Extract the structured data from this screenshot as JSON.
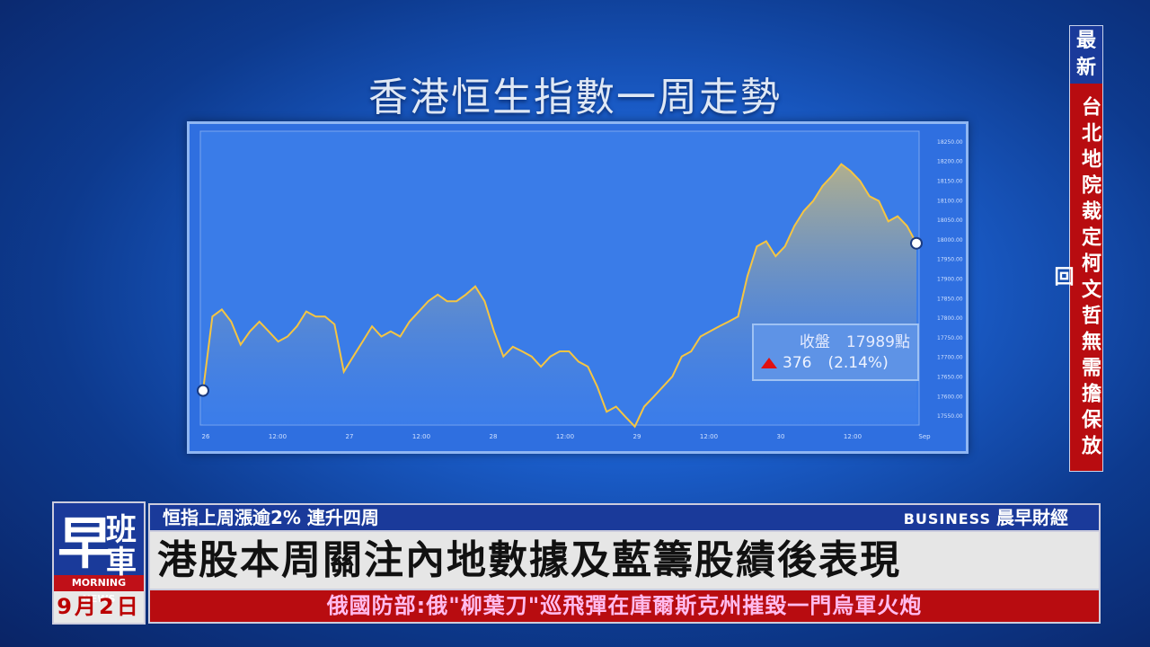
{
  "title": "香港恒生指數一周走勢",
  "side": {
    "tag": "最新",
    "headline": "台北地院裁定柯文哲無需擔保放回"
  },
  "logo": {
    "mark": "早",
    "line1": "班",
    "line2": "車",
    "english": "MORNING NEWS",
    "date": "9月2日"
  },
  "ticker": {
    "subtitle": "恒指上周漲逾2% 連升四周",
    "segment_en": "BUSINESS",
    "segment_zh": "晨早財經",
    "headline": "港股本周關注內地數據及藍籌股績後表現",
    "news": "俄國防部:俄\"柳葉刀\"巡飛彈在庫爾斯克州摧毀一門烏軍火炮"
  },
  "info": {
    "close_label": "收盤",
    "close_value": "17989點",
    "change": "376",
    "change_pct": "(2.14%)",
    "up_color": "#e01010"
  },
  "chart_data": {
    "type": "area",
    "title": "香港恒生指數一周走勢",
    "x_ticks": [
      "26",
      "12:00",
      "27",
      "12:00",
      "28",
      "12:00",
      "29",
      "12:00",
      "30",
      "12:00",
      "Sep"
    ],
    "y_ticks": [
      "17550.00",
      "17600.00",
      "17650.00",
      "17700.00",
      "17750.00",
      "17800.00",
      "17850.00",
      "17900.00",
      "17950.00",
      "18000.00",
      "18050.00",
      "18100.00",
      "18150.00",
      "18200.00",
      "18250.00"
    ],
    "ylim": [
      17525,
      18275
    ],
    "y_axis": "right",
    "grid": false,
    "line_color": "#f5c542",
    "values": [
      17613,
      17802,
      17820,
      17789,
      17730,
      17764,
      17789,
      17764,
      17738,
      17751,
      17777,
      17815,
      17802,
      17802,
      17782,
      17661,
      17700,
      17738,
      17777,
      17751,
      17764,
      17751,
      17789,
      17815,
      17841,
      17858,
      17841,
      17841,
      17858,
      17879,
      17841,
      17764,
      17700,
      17725,
      17713,
      17700,
      17674,
      17700,
      17713,
      17713,
      17687,
      17674,
      17623,
      17559,
      17572,
      17546,
      17521,
      17572,
      17597,
      17623,
      17649,
      17700,
      17713,
      17751,
      17764,
      17777,
      17789,
      17802,
      17905,
      17981,
      17994,
      17956,
      17981,
      18033,
      18071,
      18097,
      18135,
      18161,
      18191,
      18173,
      18148,
      18109,
      18097,
      18045,
      18058,
      18033,
      17989
    ],
    "close": 17989,
    "change": 376,
    "change_pct": 2.14
  }
}
